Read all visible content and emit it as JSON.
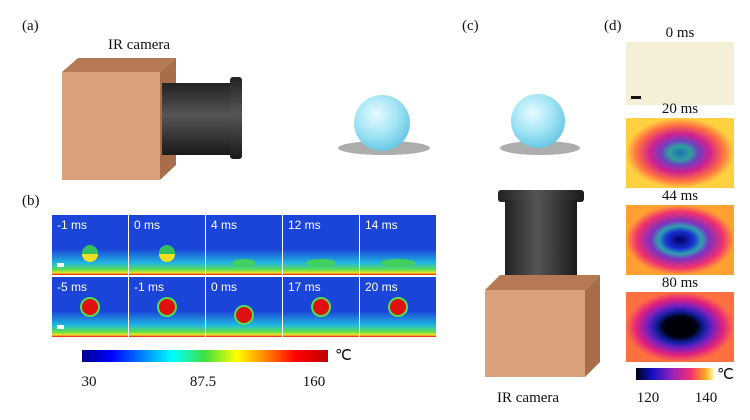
{
  "panels": {
    "a": "(a)",
    "b": "(b)",
    "c": "(c)",
    "d": "(d)"
  },
  "a": {
    "camera_label": "IR camera"
  },
  "b": {
    "row1": [
      "-1 ms",
      "0 ms",
      "4 ms",
      "12 ms",
      "14 ms"
    ],
    "row2": [
      "-5 ms",
      "-1 ms",
      "0 ms",
      "17 ms",
      "20 ms"
    ],
    "colorbar": {
      "ticks": [
        "30",
        "87.5",
        "160"
      ],
      "unit": "℃"
    }
  },
  "c": {
    "camera_label": "IR camera"
  },
  "d": {
    "frames": [
      "0 ms",
      "20 ms",
      "44 ms",
      "80 ms"
    ],
    "colorbar": {
      "ticks": [
        "120",
        "140"
      ],
      "unit": "℃"
    }
  }
}
